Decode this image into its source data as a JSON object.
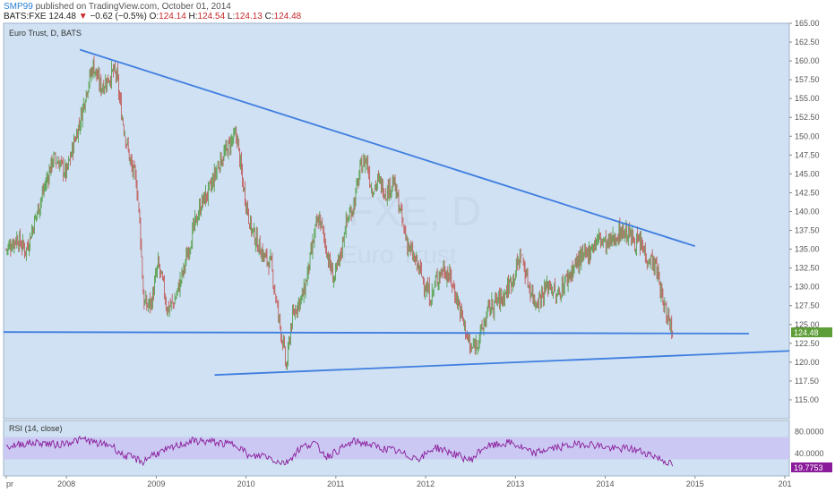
{
  "header": {
    "publisher": "SMP99",
    "published_text": "published on TradingView.com, October 01, 2014",
    "symbol": "BATS:FXE",
    "last": "124.48",
    "change": "−0.62 (−0.5%)",
    "o_label": "O:",
    "o": "124.14",
    "h_label": "H:",
    "h": "124.54",
    "l_label": "L:",
    "l": "124.13",
    "c_label": "C:",
    "c": "124.48"
  },
  "watermark": {
    "symbol": "FXE, D",
    "name": "Euro Trust"
  },
  "colors": {
    "background": "#cfe1f2",
    "up": "#4c9a3c",
    "down": "#c0504d",
    "trendline": "#3f7ee0",
    "rsi_line": "#8a1c9b",
    "rsi_band": "#c9c3f2",
    "price_tag": "#5e9e38",
    "rsi_tag": "#8a1c9b"
  },
  "chart_data": [
    {
      "type": "candlestick",
      "title": "Euro Trust, D, BATS",
      "current_price_label": "124.48",
      "ylim": [
        112.5,
        165.0
      ],
      "y_ticks": [
        "115.00",
        "117.50",
        "120.00",
        "122.50",
        "125.00",
        "127.50",
        "130.00",
        "132.50",
        "135.00",
        "137.50",
        "140.00",
        "142.50",
        "145.00",
        "147.50",
        "150.00",
        "152.50",
        "155.00",
        "157.50",
        "160.00",
        "162.50",
        "165.00"
      ],
      "x_ticks": [
        "pr",
        "2008",
        "2009",
        "2010",
        "2011",
        "2012",
        "2013",
        "2014",
        "2015",
        "201"
      ],
      "x_tick_years": [
        2007.33,
        2008.0,
        2009.0,
        2010.0,
        2011.0,
        2012.0,
        2013.0,
        2014.0,
        2015.0,
        2016.0
      ],
      "xlim": [
        2007.3,
        2016.05
      ],
      "price_path": [
        [
          2007.33,
          135.0
        ],
        [
          2007.45,
          136.5
        ],
        [
          2007.55,
          134.8
        ],
        [
          2007.65,
          139.0
        ],
        [
          2007.75,
          143.0
        ],
        [
          2007.85,
          147.0
        ],
        [
          2007.92,
          146.5
        ],
        [
          2008.0,
          145.0
        ],
        [
          2008.08,
          149.0
        ],
        [
          2008.15,
          152.0
        ],
        [
          2008.22,
          156.0
        ],
        [
          2008.3,
          159.5
        ],
        [
          2008.38,
          156.5
        ],
        [
          2008.46,
          157.5
        ],
        [
          2008.52,
          158.5
        ],
        [
          2008.56,
          158.0
        ],
        [
          2008.6,
          154.0
        ],
        [
          2008.65,
          150.5
        ],
        [
          2008.72,
          146.0
        ],
        [
          2008.78,
          144.0
        ],
        [
          2008.82,
          138.0
        ],
        [
          2008.86,
          128.0
        ],
        [
          2008.9,
          127.5
        ],
        [
          2008.95,
          128.0
        ],
        [
          2009.02,
          133.0
        ],
        [
          2009.08,
          130.0
        ],
        [
          2009.12,
          127.0
        ],
        [
          2009.2,
          128.0
        ],
        [
          2009.3,
          132.0
        ],
        [
          2009.4,
          137.0
        ],
        [
          2009.5,
          141.0
        ],
        [
          2009.6,
          143.0
        ],
        [
          2009.7,
          146.5
        ],
        [
          2009.78,
          148.0
        ],
        [
          2009.84,
          149.5
        ],
        [
          2009.9,
          150.0
        ],
        [
          2009.96,
          144.0
        ],
        [
          2010.05,
          138.0
        ],
        [
          2010.12,
          136.0
        ],
        [
          2010.2,
          134.0
        ],
        [
          2010.28,
          133.0
        ],
        [
          2010.35,
          127.0
        ],
        [
          2010.42,
          122.0
        ],
        [
          2010.45,
          119.0
        ],
        [
          2010.5,
          125.0
        ],
        [
          2010.56,
          127.5
        ],
        [
          2010.64,
          129.0
        ],
        [
          2010.72,
          134.0
        ],
        [
          2010.78,
          138.0
        ],
        [
          2010.82,
          139.0
        ],
        [
          2010.88,
          136.0
        ],
        [
          2010.93,
          133.0
        ],
        [
          2010.98,
          131.0
        ],
        [
          2011.05,
          134.0
        ],
        [
          2011.1,
          138.0
        ],
        [
          2011.2,
          141.0
        ],
        [
          2011.28,
          146.0
        ],
        [
          2011.34,
          147.0
        ],
        [
          2011.4,
          143.0
        ],
        [
          2011.48,
          144.0
        ],
        [
          2011.56,
          142.5
        ],
        [
          2011.64,
          144.0
        ],
        [
          2011.7,
          141.0
        ],
        [
          2011.76,
          137.5
        ],
        [
          2011.82,
          135.0
        ],
        [
          2011.88,
          133.5
        ],
        [
          2011.94,
          132.0
        ],
        [
          2012.0,
          130.0
        ],
        [
          2012.06,
          128.5
        ],
        [
          2012.12,
          131.0
        ],
        [
          2012.2,
          132.5
        ],
        [
          2012.28,
          131.0
        ],
        [
          2012.36,
          128.0
        ],
        [
          2012.44,
          124.5
        ],
        [
          2012.5,
          121.5
        ],
        [
          2012.56,
          122.5
        ],
        [
          2012.62,
          124.0
        ],
        [
          2012.7,
          127.0
        ],
        [
          2012.78,
          128.0
        ],
        [
          2012.85,
          128.5
        ],
        [
          2012.92,
          130.0
        ],
        [
          2013.0,
          132.0
        ],
        [
          2013.06,
          134.5
        ],
        [
          2013.14,
          130.5
        ],
        [
          2013.22,
          128.0
        ],
        [
          2013.3,
          129.0
        ],
        [
          2013.38,
          130.5
        ],
        [
          2013.46,
          128.5
        ],
        [
          2013.54,
          130.5
        ],
        [
          2013.62,
          132.0
        ],
        [
          2013.7,
          133.5
        ],
        [
          2013.78,
          134.0
        ],
        [
          2013.86,
          135.5
        ],
        [
          2013.94,
          136.5
        ],
        [
          2014.02,
          135.5
        ],
        [
          2014.1,
          136.5
        ],
        [
          2014.18,
          137.5
        ],
        [
          2014.26,
          137.0
        ],
        [
          2014.34,
          136.0
        ],
        [
          2014.4,
          135.5
        ],
        [
          2014.46,
          134.0
        ],
        [
          2014.52,
          133.5
        ],
        [
          2014.58,
          132.0
        ],
        [
          2014.64,
          128.0
        ],
        [
          2014.7,
          126.0
        ],
        [
          2014.75,
          124.48
        ]
      ],
      "trendlines": [
        {
          "x1": 2008.15,
          "y1": 161.5,
          "x2": 2015.0,
          "y2": 135.4
        },
        {
          "x1": 2007.3,
          "y1": 124.0,
          "x2": 2015.6,
          "y2": 123.8
        },
        {
          "x1": 2009.65,
          "y1": 118.3,
          "x2": 2016.05,
          "y2": 121.5
        }
      ]
    },
    {
      "type": "line",
      "title": "RSI (14, close)",
      "current_value_label": "19.7753",
      "ylim": [
        0,
        100
      ],
      "y_ticks": [
        "40.0000",
        "80.0000"
      ],
      "band": [
        30,
        70
      ],
      "rsi_path": [
        [
          2007.33,
          52
        ],
        [
          2007.5,
          58
        ],
        [
          2007.7,
          60
        ],
        [
          2007.9,
          56
        ],
        [
          2008.05,
          62
        ],
        [
          2008.2,
          66
        ],
        [
          2008.35,
          58
        ],
        [
          2008.5,
          56
        ],
        [
          2008.62,
          38
        ],
        [
          2008.75,
          32
        ],
        [
          2008.85,
          25
        ],
        [
          2008.95,
          38
        ],
        [
          2009.1,
          45
        ],
        [
          2009.25,
          55
        ],
        [
          2009.4,
          63
        ],
        [
          2009.6,
          62
        ],
        [
          2009.75,
          58
        ],
        [
          2009.9,
          57
        ],
        [
          2010.05,
          33
        ],
        [
          2010.2,
          38
        ],
        [
          2010.35,
          26
        ],
        [
          2010.45,
          24
        ],
        [
          2010.6,
          50
        ],
        [
          2010.75,
          60
        ],
        [
          2010.9,
          35
        ],
        [
          2011.05,
          48
        ],
        [
          2011.2,
          62
        ],
        [
          2011.35,
          58
        ],
        [
          2011.5,
          50
        ],
        [
          2011.65,
          46
        ],
        [
          2011.8,
          36
        ],
        [
          2011.95,
          32
        ],
        [
          2012.1,
          52
        ],
        [
          2012.25,
          44
        ],
        [
          2012.4,
          34
        ],
        [
          2012.5,
          28
        ],
        [
          2012.65,
          52
        ],
        [
          2012.8,
          56
        ],
        [
          2012.95,
          60
        ],
        [
          2013.05,
          52
        ],
        [
          2013.2,
          40
        ],
        [
          2013.35,
          48
        ],
        [
          2013.5,
          52
        ],
        [
          2013.65,
          56
        ],
        [
          2013.8,
          58
        ],
        [
          2013.95,
          54
        ],
        [
          2014.1,
          48
        ],
        [
          2014.25,
          50
        ],
        [
          2014.4,
          44
        ],
        [
          2014.52,
          38
        ],
        [
          2014.62,
          30
        ],
        [
          2014.7,
          24
        ],
        [
          2014.75,
          19.8
        ]
      ]
    }
  ]
}
